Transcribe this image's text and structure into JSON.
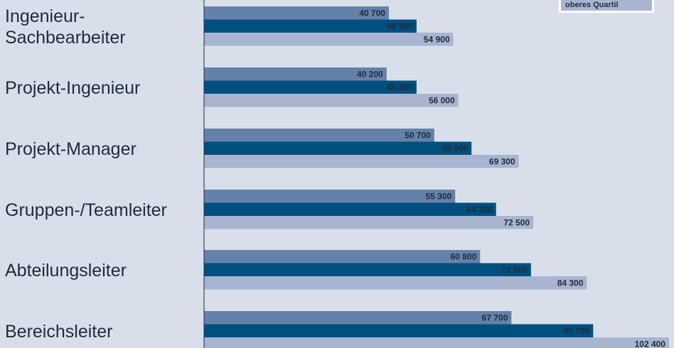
{
  "legend": {
    "visible_label": "oberes Quartil"
  },
  "colors": {
    "background": "#d9dfea",
    "unteres_quartil": "#6482a9",
    "median": "#00507f",
    "oberes_quartil": "#a9b5d0",
    "text": "#1f2b3d",
    "axis": "#1f2b3d"
  },
  "chart_data": {
    "type": "bar",
    "orientation": "horizontal",
    "categories": [
      [
        "Ingenieur-",
        "Sachbearbeiter"
      ],
      [
        "Projekt-Ingenieur"
      ],
      [
        "Projekt-Manager"
      ],
      [
        "Gruppen-/Teamleiter"
      ],
      [
        "Abteilungsleiter"
      ],
      [
        "Bereichsleiter"
      ]
    ],
    "series": [
      {
        "values": [
          40700,
          40200,
          50700,
          55300,
          60800,
          67700
        ],
        "labels": [
          "40 700",
          "40 200",
          "50 700",
          "55 300",
          "60 800",
          "67 700"
        ]
      },
      {
        "values": [
          46800,
          46800,
          58900,
          64300,
          72000,
          85700
        ],
        "labels": [
          "46 800",
          "46 800",
          "58 900",
          "64 300",
          "72 000",
          "85 700"
        ]
      },
      {
        "name": "oberes Quartil",
        "values": [
          54900,
          56000,
          69300,
          72500,
          84300,
          102400
        ],
        "labels": [
          "54 900",
          "56 000",
          "69 300",
          "72 500",
          "84 300",
          "102 400"
        ]
      }
    ],
    "xlim": [
      0,
      102400
    ],
    "grid": false,
    "legend_position": "top-right"
  }
}
